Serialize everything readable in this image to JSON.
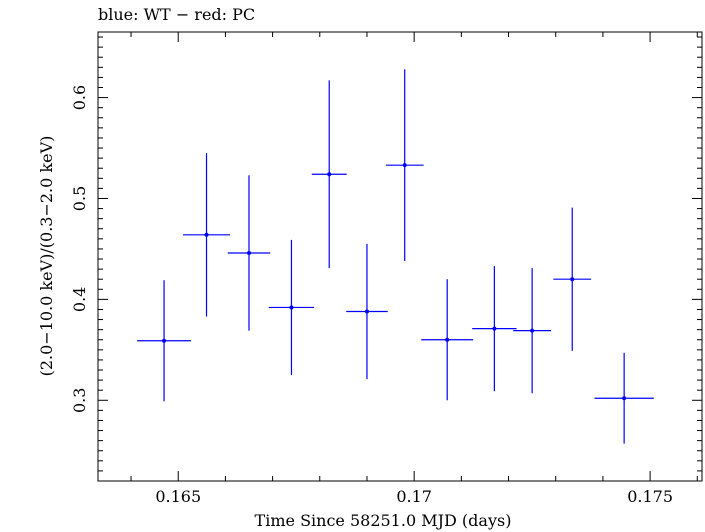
{
  "chart_data": {
    "type": "scatter",
    "title": "blue: WT − red: PC",
    "xlabel": "Time Since 58251.0 MJD (days)",
    "ylabel": "(2.0−10.0 keV)/(0.3−2.0 keV)",
    "xlim": [
      0.1633,
      0.1761
    ],
    "ylim": [
      0.22,
      0.665
    ],
    "xticks": [
      0.165,
      0.17,
      0.175
    ],
    "xtick_labels": [
      "0.165",
      "0.17",
      "0.175"
    ],
    "yticks": [
      0.3,
      0.4,
      0.5,
      0.6
    ],
    "ytick_labels": [
      "0.3",
      "0.4",
      "0.5",
      "0.6"
    ],
    "grid": false,
    "series": [
      {
        "color": "#0000ff",
        "points": [
          {
            "x": 0.1647,
            "y": 0.359,
            "xerr": 0.00057,
            "yerr": 0.06
          },
          {
            "x": 0.1656,
            "y": 0.464,
            "xerr": 0.0005,
            "yerr": 0.081
          },
          {
            "x": 0.1665,
            "y": 0.446,
            "xerr": 0.00045,
            "yerr": 0.077
          },
          {
            "x": 0.1674,
            "y": 0.392,
            "xerr": 0.00048,
            "yerr": 0.067
          },
          {
            "x": 0.1682,
            "y": 0.524,
            "xerr": 0.00037,
            "yerr": 0.093
          },
          {
            "x": 0.169,
            "y": 0.388,
            "xerr": 0.00044,
            "yerr": 0.067
          },
          {
            "x": 0.1698,
            "y": 0.533,
            "xerr": 0.0004,
            "yerr": 0.095
          },
          {
            "x": 0.1707,
            "y": 0.36,
            "xerr": 0.00055,
            "yerr": 0.06
          },
          {
            "x": 0.1717,
            "y": 0.371,
            "xerr": 0.00047,
            "yerr": 0.062
          },
          {
            "x": 0.1725,
            "y": 0.369,
            "xerr": 0.0004,
            "yerr": 0.062
          },
          {
            "x": 0.17335,
            "y": 0.42,
            "xerr": 0.0004,
            "yerr": 0.071
          },
          {
            "x": 0.17445,
            "y": 0.302,
            "xerr": 0.00063,
            "yerr": 0.045
          }
        ]
      }
    ]
  }
}
